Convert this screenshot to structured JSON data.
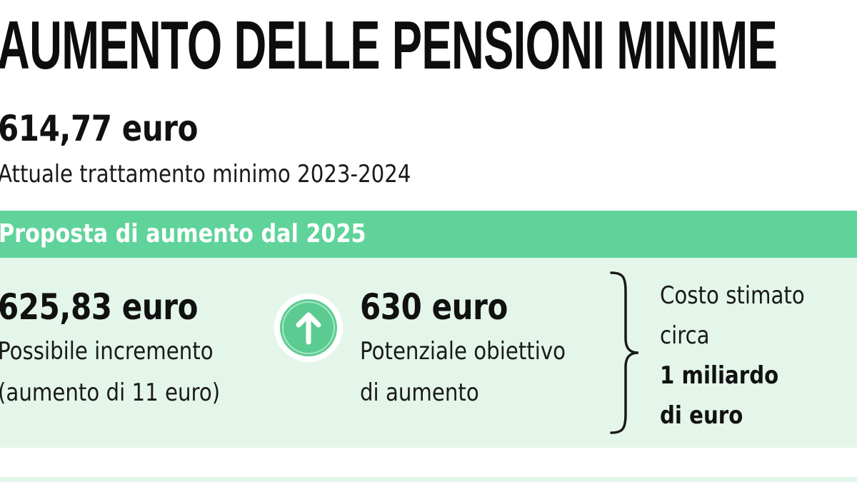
{
  "title": "AUMENTO DELLE PENSIONI MINIME",
  "current": {
    "value": "614,77 euro",
    "caption": "Attuale trattamento minimo 2023-2024"
  },
  "proposal": {
    "heading": "Proposta di aumento dal 2025",
    "increment": {
      "value": "625,83 euro",
      "caption_line1": "Possibile incremento",
      "caption_line2": "(aumento di 11 euro)"
    },
    "target": {
      "value": "630 euro",
      "caption_line1": "Potenziale obiettivo",
      "caption_line2": "di aumento"
    },
    "cost": {
      "line1": "Costo stimato",
      "line2": "circa",
      "line3": "1 miliardo",
      "line4": "di euro"
    }
  },
  "icons": {
    "arrow": "arrow-up-icon",
    "brace": "right-brace-icon"
  },
  "colors": {
    "band": "#5fd39a",
    "panel": "#e4f6ea",
    "circle": "#5ccb92",
    "text": "#111111"
  }
}
